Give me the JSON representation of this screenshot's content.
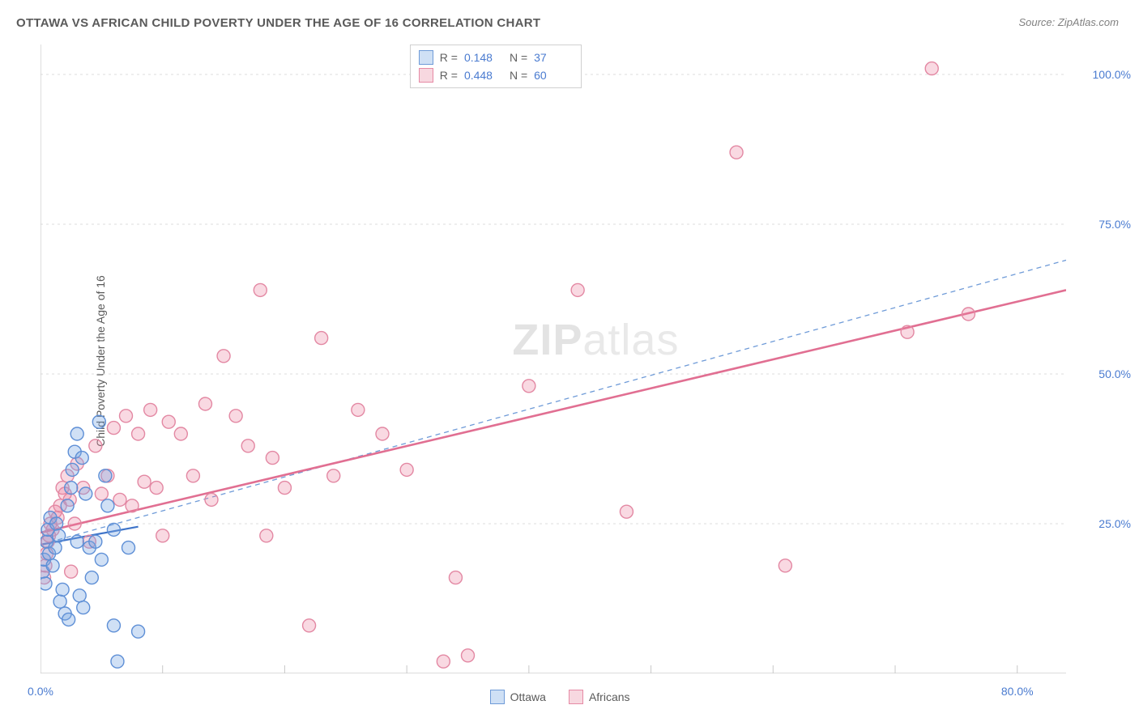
{
  "title": "OTTAWA VS AFRICAN CHILD POVERTY UNDER THE AGE OF 16 CORRELATION CHART",
  "source_prefix": "Source: ",
  "source_name": "ZipAtlas.com",
  "ylabel": "Child Poverty Under the Age of 16",
  "watermark": {
    "bold": "ZIP",
    "rest": "atlas"
  },
  "chart": {
    "type": "scatter",
    "background_color": "#ffffff",
    "grid_color": "#dcdcdc",
    "axis_line_color": "#c8c8c8",
    "tick_color": "#c8c8c8",
    "label_color": "#4a7bd0",
    "xlim": [
      0,
      84
    ],
    "ylim": [
      0,
      105
    ],
    "y_gridlines": [
      25,
      50,
      75,
      100
    ],
    "y_tick_labels": [
      "25.0%",
      "50.0%",
      "75.0%",
      "100.0%"
    ],
    "x_minor_ticks": [
      10,
      20,
      30,
      40,
      50,
      60,
      70,
      80
    ],
    "x_start_label": "0.0%",
    "x_end_label": "80.0%",
    "marker_radius": 8,
    "marker_stroke_width": 1.4,
    "series": {
      "ottawa": {
        "label": "Ottawa",
        "R": "0.148",
        "N": "37",
        "fill": "rgba(120,165,225,0.35)",
        "stroke": "#5e8fd6",
        "swatch_fill": "#cfe0f5",
        "swatch_border": "#6f9bd8",
        "reg_solid": {
          "x1": 0,
          "y1": 21.5,
          "x2": 8,
          "y2": 24.5,
          "color": "#3f74c9",
          "width": 2.2
        },
        "reg_dashed": {
          "x1": 0,
          "y1": 21.5,
          "x2": 84,
          "y2": 69,
          "color": "#6f9bd8",
          "width": 1.3,
          "dash": "6 5"
        },
        "points": [
          [
            0.2,
            17
          ],
          [
            0.3,
            19
          ],
          [
            0.4,
            15
          ],
          [
            0.5,
            22
          ],
          [
            0.6,
            24
          ],
          [
            0.7,
            20
          ],
          [
            0.8,
            26
          ],
          [
            1.0,
            18
          ],
          [
            1.2,
            21
          ],
          [
            1.3,
            25
          ],
          [
            1.5,
            23
          ],
          [
            1.6,
            12
          ],
          [
            1.8,
            14
          ],
          [
            2.0,
            10
          ],
          [
            2.2,
            28
          ],
          [
            2.3,
            9
          ],
          [
            2.5,
            31
          ],
          [
            2.6,
            34
          ],
          [
            2.8,
            37
          ],
          [
            3.0,
            22
          ],
          [
            3.0,
            40
          ],
          [
            3.2,
            13
          ],
          [
            3.4,
            36
          ],
          [
            3.5,
            11
          ],
          [
            3.7,
            30
          ],
          [
            4.0,
            21
          ],
          [
            4.2,
            16
          ],
          [
            4.5,
            22
          ],
          [
            4.8,
            42
          ],
          [
            5.0,
            19
          ],
          [
            5.3,
            33
          ],
          [
            5.5,
            28
          ],
          [
            6.0,
            24
          ],
          [
            6.0,
            8
          ],
          [
            6.3,
            2
          ],
          [
            7.2,
            21
          ],
          [
            8.0,
            7
          ]
        ]
      },
      "africans": {
        "label": "Africans",
        "R": "0.448",
        "N": "60",
        "fill": "rgba(235,130,160,0.30)",
        "stroke": "#e388a3",
        "swatch_fill": "#f7d8e0",
        "swatch_border": "#e68aa5",
        "reg_solid": {
          "x1": 0,
          "y1": 23.5,
          "x2": 84,
          "y2": 64,
          "color": "#e16f92",
          "width": 2.6
        },
        "points": [
          [
            0.3,
            16
          ],
          [
            0.4,
            18
          ],
          [
            0.5,
            20
          ],
          [
            0.6,
            22
          ],
          [
            0.7,
            23
          ],
          [
            0.8,
            25
          ],
          [
            1.0,
            24
          ],
          [
            1.2,
            27
          ],
          [
            1.4,
            26
          ],
          [
            1.6,
            28
          ],
          [
            1.8,
            31
          ],
          [
            2.0,
            30
          ],
          [
            2.2,
            33
          ],
          [
            2.4,
            29
          ],
          [
            2.5,
            17
          ],
          [
            2.8,
            25
          ],
          [
            3.0,
            35
          ],
          [
            3.5,
            31
          ],
          [
            4.0,
            22
          ],
          [
            4.5,
            38
          ],
          [
            5.0,
            30
          ],
          [
            5.5,
            33
          ],
          [
            6.0,
            41
          ],
          [
            6.5,
            29
          ],
          [
            7.0,
            43
          ],
          [
            7.5,
            28
          ],
          [
            8.0,
            40
          ],
          [
            8.5,
            32
          ],
          [
            9.0,
            44
          ],
          [
            9.5,
            31
          ],
          [
            10.0,
            23
          ],
          [
            10.5,
            42
          ],
          [
            11.5,
            40
          ],
          [
            12.5,
            33
          ],
          [
            13.5,
            45
          ],
          [
            14.0,
            29
          ],
          [
            15.0,
            53
          ],
          [
            16.0,
            43
          ],
          [
            17.0,
            38
          ],
          [
            18.0,
            64
          ],
          [
            18.5,
            23
          ],
          [
            19.0,
            36
          ],
          [
            20.0,
            31
          ],
          [
            22.0,
            8
          ],
          [
            23.0,
            56
          ],
          [
            24.0,
            33
          ],
          [
            26.0,
            44
          ],
          [
            28.0,
            40
          ],
          [
            30.0,
            34
          ],
          [
            33.0,
            2
          ],
          [
            34.0,
            16
          ],
          [
            35.0,
            3
          ],
          [
            40.0,
            48
          ],
          [
            44.0,
            64
          ],
          [
            48.0,
            27
          ],
          [
            57.0,
            87
          ],
          [
            61.0,
            18
          ],
          [
            71.0,
            57
          ],
          [
            73.0,
            101
          ],
          [
            76.0,
            60
          ]
        ]
      }
    }
  },
  "legend_top": {
    "R_label": "R  =",
    "N_label": "N  ="
  }
}
